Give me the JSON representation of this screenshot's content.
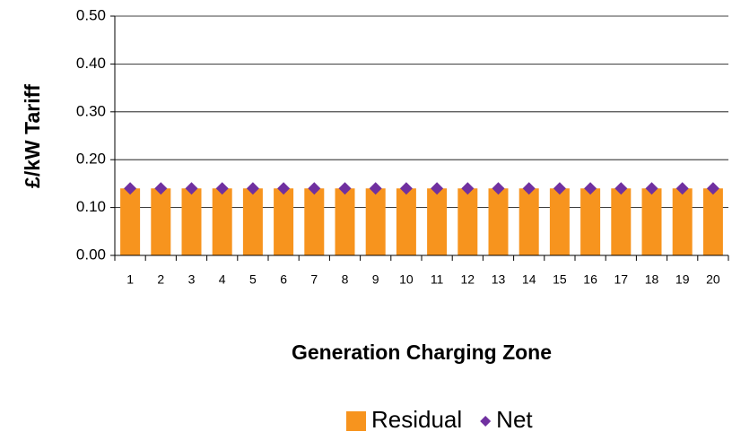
{
  "chart_data": {
    "type": "bar",
    "x_label": "Generation Charging Zone",
    "y_label": "£/kW Tariff",
    "categories": [
      "1",
      "2",
      "3",
      "4",
      "5",
      "6",
      "7",
      "8",
      "9",
      "10",
      "11",
      "12",
      "13",
      "14",
      "15",
      "16",
      "17",
      "18",
      "19",
      "20"
    ],
    "series": [
      {
        "name": "Residual",
        "type": "bar",
        "color": "#f7941e",
        "values": [
          0.14,
          0.14,
          0.14,
          0.14,
          0.14,
          0.14,
          0.14,
          0.14,
          0.14,
          0.14,
          0.14,
          0.14,
          0.14,
          0.14,
          0.14,
          0.14,
          0.14,
          0.14,
          0.14,
          0.14
        ]
      },
      {
        "name": "Net",
        "type": "marker",
        "color": "#7030a0",
        "values": [
          0.14,
          0.14,
          0.14,
          0.14,
          0.14,
          0.14,
          0.14,
          0.14,
          0.14,
          0.14,
          0.14,
          0.14,
          0.14,
          0.14,
          0.14,
          0.14,
          0.14,
          0.14,
          0.14,
          0.14
        ]
      }
    ],
    "ylim": [
      0,
      0.5
    ],
    "yticks": [
      {
        "value": 0,
        "label": "0.00"
      },
      {
        "value": 0.1,
        "label": "0.10"
      },
      {
        "value": 0.2,
        "label": "0.20"
      },
      {
        "value": 0.3,
        "label": "0.30"
      },
      {
        "value": 0.4,
        "label": "0.40"
      },
      {
        "value": 0.5,
        "label": "0.50"
      }
    ],
    "grid": true,
    "legend": "bottom"
  }
}
